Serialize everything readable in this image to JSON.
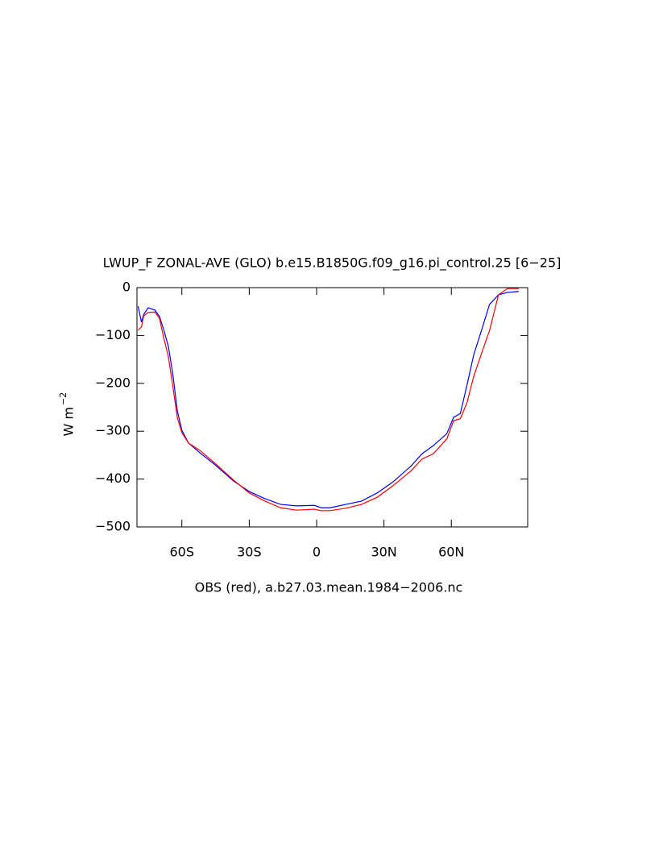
{
  "chart_data": {
    "type": "line",
    "title": "LWUP_F ZONAL-AVE (GLO) b.e15.B1850G.f09_g16.pi_control.25 [6−25]",
    "x_label": "OBS (red), a.b27.03.mean.1984−2006.nc",
    "y_label": "W m",
    "y_label_sup": "−2",
    "x": [
      -79.5,
      -78,
      -77,
      -75,
      -72,
      -70,
      -68,
      -66,
      -64,
      -62,
      -60,
      -57,
      -52,
      -45,
      -37,
      -30,
      -23,
      -16,
      -9,
      -1,
      2,
      6,
      13,
      20,
      27,
      34,
      42,
      47,
      52,
      58,
      61,
      64,
      67,
      70,
      74,
      77,
      81,
      85,
      90
    ],
    "series": [
      {
        "color": "#0000ff",
        "values": [
          -39,
          -72,
          -56,
          -42,
          -47,
          -60,
          -89,
          -123,
          -182,
          -258,
          -298,
          -325,
          -345,
          -371,
          -404,
          -426,
          -441,
          -453,
          -456,
          -455,
          -460,
          -460,
          -453,
          -446,
          -429,
          -406,
          -373,
          -347,
          -330,
          -305,
          -271,
          -263,
          -203,
          -140,
          -81,
          -35,
          -15,
          -10,
          -8
        ]
      },
      {
        "color": "#ff0000",
        "values": [
          -89,
          -82,
          -59,
          -52,
          -51,
          -64,
          -106,
          -145,
          -207,
          -272,
          -303,
          -325,
          -340,
          -368,
          -402,
          -429,
          -446,
          -460,
          -465,
          -463,
          -466,
          -466,
          -461,
          -453,
          -438,
          -414,
          -383,
          -358,
          -347,
          -316,
          -278,
          -274,
          -240,
          -185,
          -130,
          -90,
          -15,
          -2,
          -2
        ]
      }
    ],
    "xlim": [
      -80,
      94
    ],
    "xticks": [
      {
        "value": -60,
        "label": "60S"
      },
      {
        "value": -30,
        "label": "30S"
      },
      0,
      {
        "value": 30,
        "label": "30N"
      },
      {
        "value": 60,
        "label": "60N"
      }
    ],
    "ylim": [
      -500,
      0
    ],
    "yticks": [
      {
        "value": -500,
        "label": "−500"
      },
      {
        "value": -400,
        "label": "−400"
      },
      {
        "value": -300,
        "label": "−300"
      },
      {
        "value": -200,
        "label": "−200"
      },
      {
        "value": -100,
        "label": "−100"
      },
      0
    ]
  }
}
